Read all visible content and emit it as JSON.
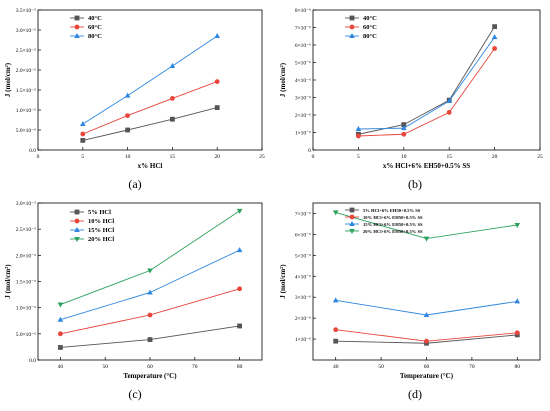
{
  "chart_data": [
    {
      "type": "line",
      "caption": "(a)",
      "xlabel": "x% HCl",
      "ylabel": "J (mol/cm²)",
      "xlim": [
        0,
        25
      ],
      "ylim": [
        0,
        3.5e-05
      ],
      "x_ticks": [
        "0",
        "5",
        "10",
        "15",
        "20",
        "25"
      ],
      "y_ticks": [
        "0.0",
        "5.0×10⁻⁶",
        "1.0×10⁻⁵",
        "1.5×10⁻⁵",
        "2.0×10⁻⁵",
        "2.5×10⁻⁵",
        "3.0×10⁻⁵",
        "3.5×10⁻⁵"
      ],
      "legend_position": "top-left",
      "x": [
        5,
        10,
        15,
        20
      ],
      "series": [
        {
          "name": "40°C",
          "marker": "square",
          "color": "#555555",
          "values": [
            2.4e-06,
            5e-06,
            7.7e-06,
            1.06e-05
          ]
        },
        {
          "name": "60°C",
          "marker": "circle",
          "color": "#e8463c",
          "values": [
            4e-06,
            8.6e-06,
            1.29e-05,
            1.71e-05
          ]
        },
        {
          "name": "80°C",
          "marker": "triangle",
          "color": "#2e86de",
          "values": [
            6.5e-06,
            1.36e-05,
            2.1e-05,
            2.85e-05
          ]
        }
      ]
    },
    {
      "type": "line",
      "caption": "(b)",
      "xlabel": "x% HCl+6% EH50+0.5% SS",
      "ylabel": "J (mol/cm²)",
      "xlim": [
        0,
        25
      ],
      "ylim": [
        0,
        8e-06
      ],
      "x_ticks": [
        "0",
        "5",
        "10",
        "15",
        "20",
        "25"
      ],
      "y_ticks": [
        "0",
        "1×10⁻⁶",
        "2×10⁻⁶",
        "3×10⁻⁶",
        "4×10⁻⁶",
        "5×10⁻⁶",
        "6×10⁻⁶",
        "7×10⁻⁶",
        "8×10⁻⁶"
      ],
      "legend_position": "top-left",
      "x": [
        5,
        10,
        15,
        20
      ],
      "series": [
        {
          "name": "40°C",
          "marker": "square",
          "color": "#555555",
          "values": [
            9e-07,
            1.45e-06,
            2.85e-06,
            7.05e-06
          ]
        },
        {
          "name": "60°C",
          "marker": "circle",
          "color": "#e8463c",
          "values": [
            8e-07,
            9e-07,
            2.15e-06,
            5.8e-06
          ]
        },
        {
          "name": "80°C",
          "marker": "triangle",
          "color": "#2e86de",
          "values": [
            1.2e-06,
            1.25e-06,
            2.8e-06,
            6.45e-06
          ]
        }
      ]
    },
    {
      "type": "line",
      "caption": "(c)",
      "xlabel": "Temperature (°C)",
      "ylabel": "J (mol/cm²)",
      "xlim": [
        35,
        85
      ],
      "ylim": [
        0,
        3e-05
      ],
      "x_ticks": [
        "40",
        "50",
        "60",
        "70",
        "80"
      ],
      "y_ticks": [
        "0.0",
        "5.0×10⁻⁶",
        "1.0×10⁻⁵",
        "1.5×10⁻⁵",
        "2.0×10⁻⁵",
        "2.5×10⁻⁵",
        "3.0×10⁻⁵"
      ],
      "legend_position": "top-left",
      "x": [
        40,
        60,
        80
      ],
      "series": [
        {
          "name": "5% HCl",
          "marker": "square",
          "color": "#555555",
          "values": [
            2.4e-06,
            3.9e-06,
            6.5e-06
          ]
        },
        {
          "name": "10% HCl",
          "marker": "circle",
          "color": "#e8463c",
          "values": [
            5e-06,
            8.6e-06,
            1.36e-05
          ]
        },
        {
          "name": "15% HCl",
          "marker": "triangle",
          "color": "#2e86de",
          "values": [
            7.7e-06,
            1.29e-05,
            2.1e-05
          ]
        },
        {
          "name": "20% HCl",
          "marker": "triangle-down",
          "color": "#2ca25f",
          "values": [
            1.06e-05,
            1.71e-05,
            2.85e-05
          ]
        }
      ]
    },
    {
      "type": "line",
      "caption": "(d)",
      "xlabel": "Temperature (°C)",
      "ylabel": "J (mol/cm²)",
      "xlim": [
        35,
        85
      ],
      "ylim": [
        0,
        7.5e-06
      ],
      "x_ticks": [
        "40",
        "50",
        "60",
        "70",
        "80"
      ],
      "y_ticks": [
        "1×10⁻⁶",
        "2×10⁻⁶",
        "3×10⁻⁶",
        "4×10⁻⁶",
        "5×10⁻⁶",
        "6×10⁻⁶",
        "7×10⁻⁶"
      ],
      "legend_position": "top-left",
      "x": [
        40,
        60,
        80
      ],
      "series": [
        {
          "name": "5% HCl+6% EH50+0.5% SS",
          "marker": "square",
          "color": "#555555",
          "values": [
            9e-07,
            8e-07,
            1.2e-06
          ]
        },
        {
          "name": "10% HCl+6% EH50+0.5% SS",
          "marker": "circle",
          "color": "#e8463c",
          "values": [
            1.45e-06,
            9e-07,
            1.3e-06
          ]
        },
        {
          "name": "15% HCl+6% EH50+0.5% SS",
          "marker": "triangle",
          "color": "#2e86de",
          "values": [
            2.85e-06,
            2.15e-06,
            2.8e-06
          ]
        },
        {
          "name": "20% HCl+6% EH50+0.5% SS",
          "marker": "triangle-down",
          "color": "#2ca25f",
          "values": [
            7.05e-06,
            5.8e-06,
            6.45e-06
          ]
        }
      ]
    }
  ]
}
